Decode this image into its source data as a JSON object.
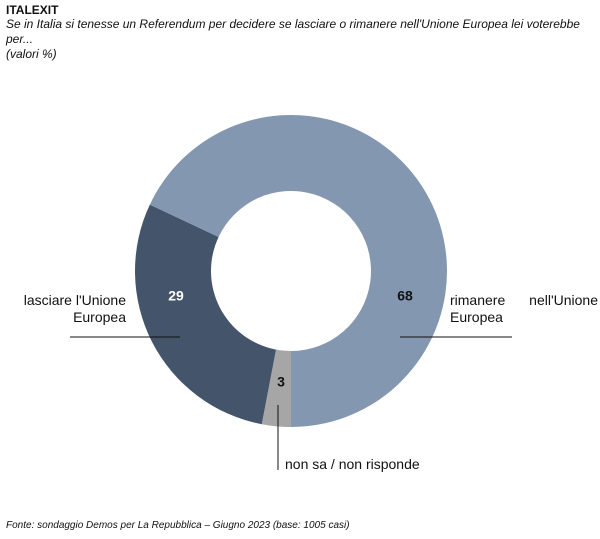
{
  "chart_data": {
    "type": "donut",
    "title": "ITALEXIT",
    "subtitle": "Se in Italia si tenesse un Referendum per decidere se lasciare o rimanere nell'Unione Europea lei voterebbe per...",
    "unit_note": "(valori %)",
    "source": "Fonte: sondaggio Demos per La Repubblica – Giugno 2023 (base: 1005 casi)",
    "categories": [
      "non sa / non risponde",
      "lasciare l'Unione Europea",
      "rimanere  nell'Unione Europea"
    ],
    "values": [
      3,
      29,
      68
    ],
    "colors": [
      "#a6a6a6",
      "#44546a",
      "#8497b0"
    ]
  }
}
